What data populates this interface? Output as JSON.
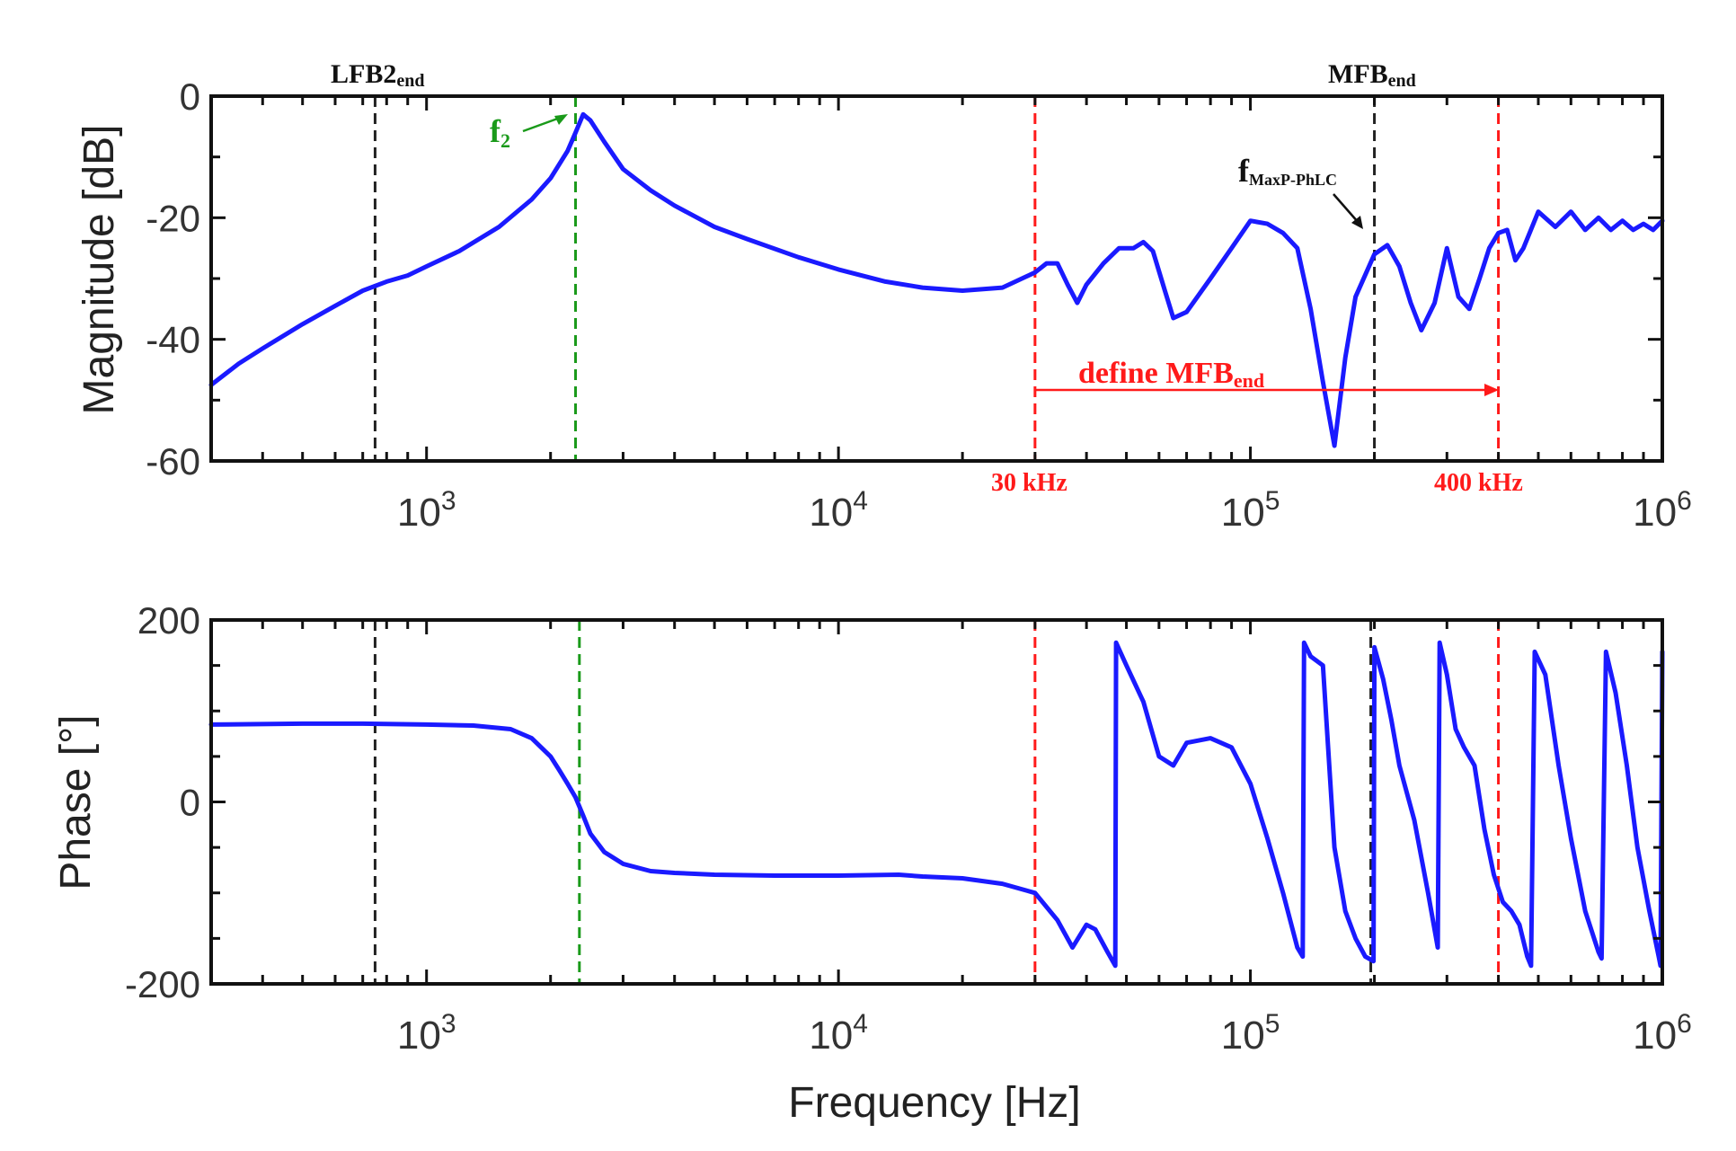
{
  "chart_data": [
    {
      "id": "magnitude",
      "type": "line",
      "xscale": "log",
      "xlim": [
        300,
        1000000
      ],
      "ylim": [
        -60,
        0
      ],
      "ylabel": "Magnitude [dB]",
      "xlabel": "",
      "yticks": [
        0,
        -20,
        -40,
        -60
      ],
      "ytick_labels": [
        "0",
        "-20",
        "-40",
        "-60"
      ],
      "xticks": [
        1000,
        10000,
        100000,
        1000000
      ],
      "xtick_base": "10",
      "xtick_exponents": [
        "3",
        "4",
        "5",
        "6"
      ],
      "series": [
        {
          "name": "magnitude",
          "color": "#1a1aff",
          "x": [
            300,
            350,
            400,
            500,
            600,
            700,
            800,
            900,
            1000,
            1200,
            1500,
            1800,
            2000,
            2200,
            2300,
            2400,
            2500,
            2700,
            3000,
            3500,
            4000,
            5000,
            6000,
            8000,
            10000,
            13000,
            16000,
            20000,
            25000,
            30000,
            32000,
            34000,
            36000,
            38000,
            40000,
            44000,
            48000,
            52000,
            55000,
            58000,
            62000,
            65000,
            70000,
            80000,
            90000,
            100000,
            110000,
            120000,
            130000,
            140000,
            150000,
            160000,
            170000,
            180000,
            200000,
            215000,
            230000,
            245000,
            260000,
            280000,
            300000,
            320000,
            340000,
            360000,
            380000,
            400000,
            420000,
            440000,
            460000,
            500000,
            550000,
            600000,
            650000,
            700000,
            750000,
            800000,
            850000,
            900000,
            950000,
            1000000
          ],
          "y": [
            -47.5,
            -44,
            -41.5,
            -37.5,
            -34.5,
            -32,
            -30.5,
            -29.5,
            -28,
            -25.5,
            -21.5,
            -17,
            -13.5,
            -9,
            -6,
            -3,
            -4,
            -7.5,
            -12,
            -15.5,
            -18,
            -21.5,
            -23.5,
            -26.5,
            -28.5,
            -30.5,
            -31.5,
            -32,
            -31.5,
            -29,
            -27.5,
            -27.5,
            -31,
            -34,
            -31,
            -27.5,
            -25,
            -25,
            -24,
            -25.5,
            -32,
            -36.5,
            -35.5,
            -30,
            -25,
            -20.5,
            -21,
            -22.5,
            -25,
            -35,
            -47,
            -57.5,
            -43,
            -33,
            -26,
            -24.5,
            -28,
            -34,
            -38.5,
            -34,
            -25,
            -33,
            -35,
            -30,
            -25,
            -22.5,
            -22,
            -27,
            -25,
            -19,
            -21.5,
            -19,
            -22,
            -20,
            -22,
            -20.5,
            -22,
            -21,
            -22,
            -20.5
          ]
        }
      ],
      "vlines": [
        {
          "x": 750,
          "color": "#222222"
        },
        {
          "x": 2300,
          "color": "#1a9a1a"
        },
        {
          "x": 30000,
          "color": "#ff1a1a"
        },
        {
          "x": 200000,
          "color": "#222222"
        },
        {
          "x": 400000,
          "color": "#ff1a1a"
        }
      ],
      "annotations": {
        "lfb2_main": "LFB2",
        "lfb2_sub": "end",
        "mfb_main": "MFB",
        "mfb_sub": "end",
        "f2_main": "f",
        "f2_sub": "2",
        "fmax_main": "f",
        "fmax_sub": "MaxP-PhLC",
        "define_main": "define MFB",
        "define_sub": "end",
        "khz30": "30 kHz",
        "khz400": "400 kHz"
      }
    },
    {
      "id": "phase",
      "type": "line",
      "xscale": "log",
      "xlim": [
        300,
        1000000
      ],
      "ylim": [
        -200,
        200
      ],
      "ylabel": "Phase [°]",
      "xlabel": "Frequency [Hz]",
      "yticks": [
        200,
        0,
        -200
      ],
      "ytick_labels": [
        "200",
        "0",
        "-200"
      ],
      "xticks": [
        1000,
        10000,
        100000,
        1000000
      ],
      "xtick_base": "10",
      "xtick_exponents": [
        "3",
        "4",
        "5",
        "6"
      ],
      "series": [
        {
          "name": "phase",
          "color": "#1a1aff",
          "x": [
            300,
            500,
            700,
            1000,
            1300,
            1600,
            1800,
            2000,
            2100,
            2200,
            2300,
            2400,
            2500,
            2700,
            3000,
            3500,
            4000,
            5000,
            7000,
            10000,
            14000,
            16000,
            20000,
            25000,
            30000,
            34000,
            37000,
            40000,
            42000,
            45000,
            47000,
            47200,
            50000,
            55000,
            60000,
            65000,
            70000,
            80000,
            90000,
            100000,
            110000,
            120000,
            130000,
            134000,
            135000,
            140000,
            150000,
            160000,
            170000,
            180000,
            190000,
            199000,
            200000,
            210000,
            220000,
            230000,
            250000,
            270000,
            285000,
            288000,
            300000,
            315000,
            330000,
            350000,
            370000,
            390000,
            410000,
            430000,
            450000,
            470000,
            480000,
            490000,
            520000,
            560000,
            600000,
            650000,
            700000,
            712000,
            730000,
            770000,
            820000,
            870000,
            930000,
            980000,
            990000,
            1000000
          ],
          "y": [
            85,
            86,
            86,
            85,
            84,
            80,
            70,
            50,
            35,
            20,
            5,
            -15,
            -35,
            -55,
            -68,
            -76,
            -78,
            -80,
            -81,
            -81,
            -80,
            -82,
            -84,
            -90,
            -100,
            -130,
            -160,
            -135,
            -140,
            -165,
            -180,
            175,
            150,
            110,
            50,
            40,
            65,
            70,
            60,
            20,
            -40,
            -100,
            -160,
            -170,
            175,
            160,
            150,
            -50,
            -120,
            -150,
            -170,
            -175,
            170,
            135,
            90,
            40,
            -20,
            -100,
            -160,
            175,
            140,
            80,
            60,
            40,
            -30,
            -80,
            -110,
            -120,
            -135,
            -170,
            -180,
            165,
            140,
            40,
            -40,
            -120,
            -165,
            -172,
            165,
            120,
            40,
            -50,
            -120,
            -170,
            -180,
            165
          ]
        }
      ],
      "vlines": [
        {
          "x": 750,
          "color": "#222222"
        },
        {
          "x": 2350,
          "color": "#1a9a1a"
        },
        {
          "x": 30000,
          "color": "#ff1a1a"
        },
        {
          "x": 196000,
          "color": "#222222"
        },
        {
          "x": 400000,
          "color": "#ff1a1a"
        }
      ]
    }
  ]
}
